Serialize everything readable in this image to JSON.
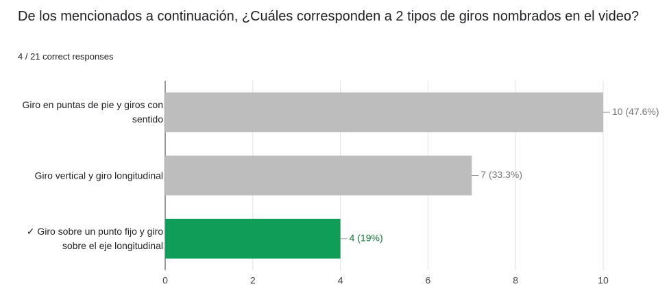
{
  "chart_data": {
    "type": "bar",
    "orientation": "horizontal",
    "title": "De los mencionados a continuación, ¿Cuáles corresponden a 2 tipos de giros nombrados en el video?",
    "subtitle": "4 / 21 correct responses",
    "categories": [
      "Giro en puntas de pie y giros con sentido",
      "Giro vertical y giro longitudinal",
      "✓ Giro sobre un punto fijo y giro sobre el eje longitudinal"
    ],
    "values": [
      10,
      7,
      4
    ],
    "value_labels": [
      "10 (47.6%)",
      "7 (33.3%)",
      "4 (19%)"
    ],
    "colors": [
      "#bdbdbd",
      "#bdbdbd",
      "#0f9d58"
    ],
    "value_label_colors": [
      "#757575",
      "#757575",
      "#137333"
    ],
    "xlim": [
      0,
      10
    ],
    "xticks": [
      0,
      2,
      4,
      6,
      8,
      10
    ],
    "grid": true
  }
}
